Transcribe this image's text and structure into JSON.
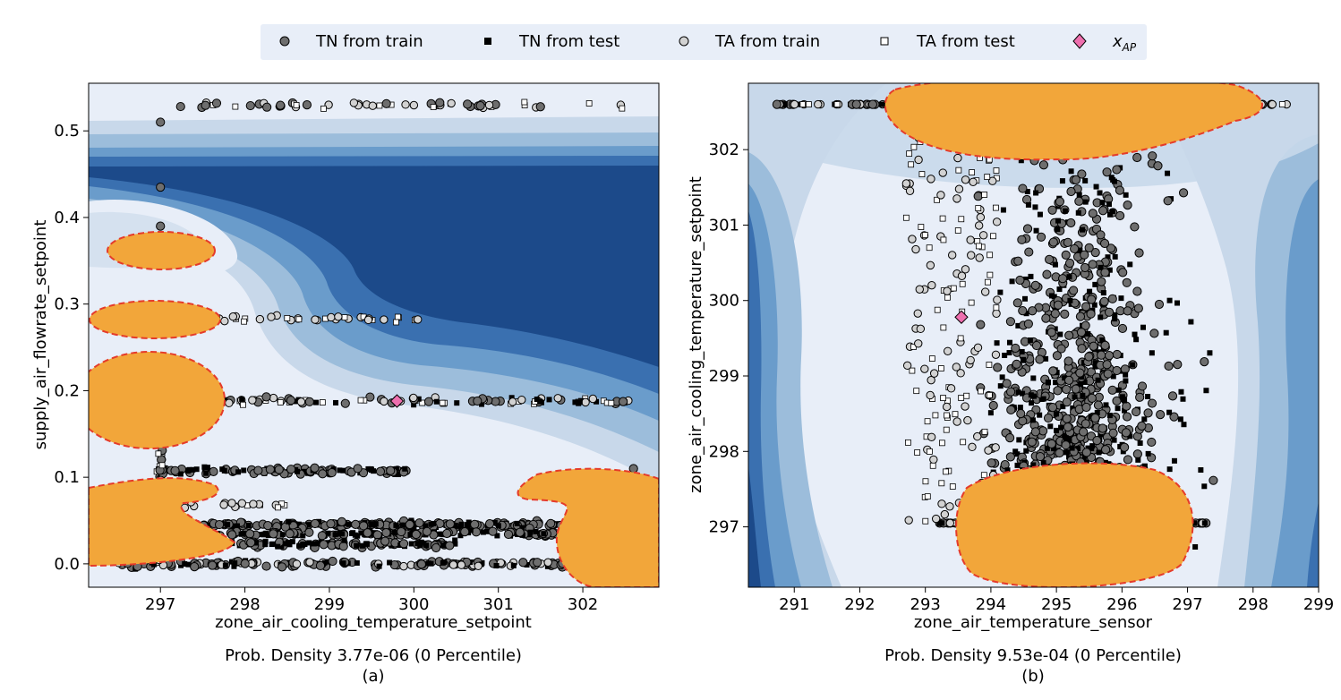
{
  "legend": {
    "entries": [
      {
        "label": "TN from train",
        "marker": "circle-dark"
      },
      {
        "label": "TN from test",
        "marker": "square-black"
      },
      {
        "label": "TA from train",
        "marker": "circle-light"
      },
      {
        "label": "TA from test",
        "marker": "square-white"
      },
      {
        "label": "x",
        "subscript": "AP",
        "marker": "diamond-pink"
      }
    ]
  },
  "colors": {
    "bg_light": "#e8eef8",
    "band1": "#c8d8ea",
    "band2": "#9cbddb",
    "band3": "#6a9ccb",
    "band4": "#3a70b0",
    "band5": "#1c4a8a",
    "anomaly_fill": "#f2a63a",
    "anomaly_edge": "#e53b2a",
    "tn_train": "#6e6e6e",
    "ta_train": "#d2d2d2",
    "xap": "#ee6fae"
  },
  "chart_data": [
    {
      "type": "scatter",
      "id": "a",
      "xlabel": "zone_air_cooling_temperature_setpoint",
      "ylabel": "supply_air_flowrate_setpoint",
      "xlim": [
        296.15,
        302.9
      ],
      "ylim": [
        -0.027,
        0.555
      ],
      "xticks": [
        297,
        298,
        299,
        300,
        301,
        302
      ],
      "yticks": [
        0.0,
        0.1,
        0.2,
        0.3,
        0.4,
        0.5
      ],
      "ytick_labels": [
        "0.0",
        "0.1",
        "0.2",
        "0.3",
        "0.4",
        "0.5"
      ],
      "xap": [
        299.8,
        0.188
      ],
      "caption": "Prob. Density 3.77e-06 (0 Percentile)",
      "sublabel": "(a)"
    },
    {
      "type": "scatter",
      "id": "b",
      "xlabel": "zone_air_temperature_sensor",
      "ylabel": "zone_air_cooling_temperature_setpoint",
      "xlim": [
        290.3,
        299.0
      ],
      "ylim": [
        296.2,
        302.88
      ],
      "xticks": [
        291,
        292,
        293,
        294,
        295,
        296,
        297,
        298,
        299
      ],
      "yticks": [
        297,
        298,
        299,
        300,
        301,
        302
      ],
      "ytick_labels": [
        "297",
        "298",
        "299",
        "300",
        "301",
        "302"
      ],
      "xap": [
        293.55,
        299.78
      ],
      "caption": "Prob. Density 9.53e-04 (0 Percentile)",
      "sublabel": "(b)"
    }
  ]
}
